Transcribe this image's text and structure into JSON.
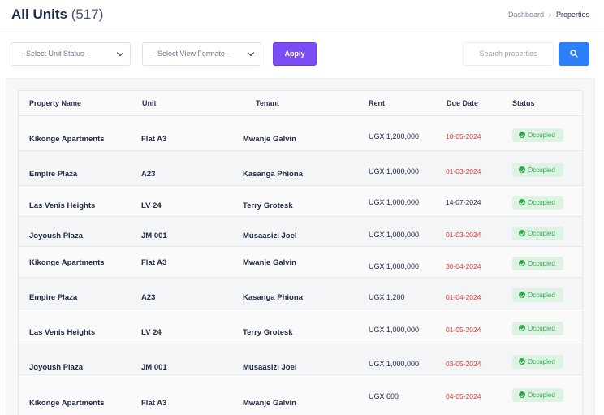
{
  "header": {
    "title": "All Units",
    "count": "(517)",
    "breadcrumb": [
      "Dashboard",
      "Properties"
    ]
  },
  "filters": {
    "unit_status_placeholder": "--Select Unit Status--",
    "view_format_placeholder": "--Select View Formate--",
    "apply_label": "Apply",
    "search_placeholder": "Search properties"
  },
  "colors": {
    "accent_purple": "#7b4df5",
    "search_blue": "#2d7ff9",
    "overdue_red": "#e53935",
    "occupied_green": "#2eaa4e"
  },
  "table": {
    "columns": [
      "Property Name",
      "Unit",
      "Tenant",
      "Rent",
      "Due Date",
      "Status"
    ],
    "rows": [
      {
        "property": "Kikonge Apartments",
        "unit": "Flat A3",
        "tenant": "Mwanje Galvin",
        "rent": "UGX 1,200,000",
        "due": "18-05-2024",
        "status": "Occupied",
        "overdue": true
      },
      {
        "property": "Empire Plaza",
        "unit": "A23",
        "tenant": "Kasanga Phiona",
        "rent": "UGX 1,000,000",
        "due": "01-03-2024",
        "status": "Occupied",
        "overdue": true
      },
      {
        "property": "Las Venis Heights",
        "unit": "LV 24",
        "tenant": "Terry Grotesk",
        "rent": "UGX 1,000,000",
        "due": "14-07-2024",
        "status": "Occupied",
        "overdue": false
      },
      {
        "property": "Joyoush Plaza",
        "unit": "JM 001",
        "tenant": "Musaasizi Joel",
        "rent": "UGX 1,000,000",
        "due": "01-03-2024",
        "status": "Occupied",
        "overdue": true
      },
      {
        "property": "Kikonge Apartments",
        "unit": "Flat A3",
        "tenant": "Mwanje Galvin",
        "rent": "UGX 1,000,000",
        "due": "30-04-2024",
        "status": "Occupied",
        "overdue": true
      },
      {
        "property": "Empire Plaza",
        "unit": "A23",
        "tenant": "Kasanga Phiona",
        "rent": "UGX 1,200",
        "due": "01-04-2024",
        "status": "Occupied",
        "overdue": true
      },
      {
        "property": "Las Venis Heights",
        "unit": "LV 24",
        "tenant": "Terry Grotesk",
        "rent": "UGX 1,000,000",
        "due": "01-05-2024",
        "status": "Occupied",
        "overdue": true
      },
      {
        "property": "Joyoush Plaza",
        "unit": "JM 001",
        "tenant": "Musaasizi Joel",
        "rent": "UGX 1,000,000",
        "due": "03-05-2024",
        "status": "Occupied",
        "overdue": true
      },
      {
        "property": "Kikonge Apartments",
        "unit": "Flat A3",
        "tenant": "Mwanje Galvin",
        "rent": "UGX 600",
        "due": "04-05-2024",
        "status": "Occupied",
        "overdue": true
      }
    ]
  }
}
